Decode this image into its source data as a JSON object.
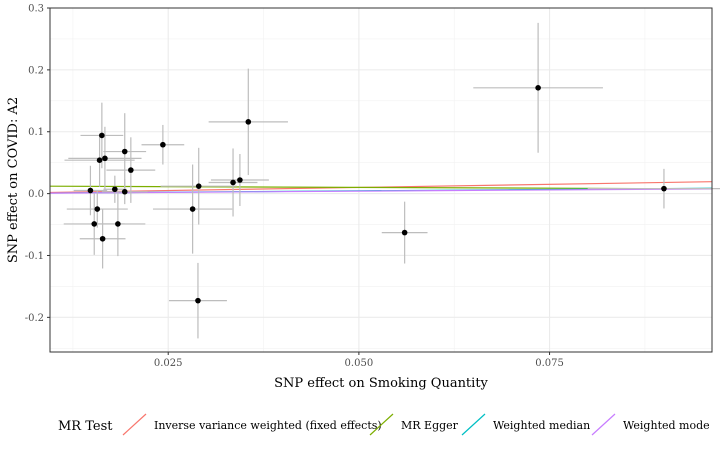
{
  "chart_data": {
    "type": "scatter",
    "xlabel": "SNP effect on Smoking Quantity",
    "ylabel": "SNP effect on COVID: A2",
    "xlim": [
      0.0095,
      0.0963
    ],
    "ylim": [
      -0.256,
      0.3
    ],
    "xticks": [
      0.025,
      0.05,
      0.075
    ],
    "xtick_labels": [
      "0.025",
      "0.050",
      "0.075"
    ],
    "yticks": [
      -0.2,
      -0.1,
      0.0,
      0.1,
      0.2,
      0.3
    ],
    "ytick_labels": [
      "-0.2",
      "-0.1",
      "0.0",
      "0.1",
      "0.2",
      "0.3"
    ],
    "grid": true,
    "points": [
      {
        "x": 0.0735,
        "y": 0.171,
        "xerr": 0.0085,
        "yerr": 0.105
      },
      {
        "x": 0.0355,
        "y": 0.116,
        "xerr": 0.0052,
        "yerr": 0.086
      },
      {
        "x": 0.0163,
        "y": 0.094,
        "xerr": 0.0028,
        "yerr": 0.053
      },
      {
        "x": 0.0243,
        "y": 0.079,
        "xerr": 0.0028,
        "yerr": 0.032
      },
      {
        "x": 0.0193,
        "y": 0.068,
        "xerr": 0.0028,
        "yerr": 0.062
      },
      {
        "x": 0.0167,
        "y": 0.057,
        "xerr": 0.0048,
        "yerr": 0.051
      },
      {
        "x": 0.016,
        "y": 0.054,
        "xerr": 0.0046,
        "yerr": 0.043
      },
      {
        "x": 0.0201,
        "y": 0.038,
        "xerr": 0.0032,
        "yerr": 0.053
      },
      {
        "x": 0.0344,
        "y": 0.022,
        "xerr": 0.0038,
        "yerr": 0.042
      },
      {
        "x": 0.0335,
        "y": 0.018,
        "xerr": 0.0032,
        "yerr": 0.055
      },
      {
        "x": 0.029,
        "y": 0.012,
        "xerr": 0.005,
        "yerr": 0.062
      },
      {
        "x": 0.018,
        "y": 0.007,
        "xerr": 0.0015,
        "yerr": 0.022
      },
      {
        "x": 0.0193,
        "y": 0.003,
        "xerr": 0.003,
        "yerr": 0.02
      },
      {
        "x": 0.0148,
        "y": 0.005,
        "xerr": 0.0022,
        "yerr": 0.04
      },
      {
        "x": 0.09,
        "y": 0.008,
        "xerr": 0.01,
        "yerr": 0.032
      },
      {
        "x": 0.0282,
        "y": -0.025,
        "xerr": 0.0052,
        "yerr": 0.072
      },
      {
        "x": 0.0157,
        "y": -0.025,
        "xerr": 0.004,
        "yerr": 0.03
      },
      {
        "x": 0.0153,
        "y": -0.049,
        "xerr": 0.004,
        "yerr": 0.05
      },
      {
        "x": 0.0184,
        "y": -0.049,
        "xerr": 0.0036,
        "yerr": 0.052
      },
      {
        "x": 0.0164,
        "y": -0.073,
        "xerr": 0.003,
        "yerr": 0.048
      },
      {
        "x": 0.056,
        "y": -0.063,
        "xerr": 0.003,
        "yerr": 0.05
      },
      {
        "x": 0.0289,
        "y": -0.173,
        "xerr": 0.0038,
        "yerr": 0.061
      }
    ],
    "lines": [
      {
        "name": "Inverse variance weighted (fixed effects)",
        "color": "#F8766D",
        "intercept": 0.0,
        "slope": 0.2
      },
      {
        "name": "MR Egger",
        "color": "#7CAE00",
        "intercept": 0.0125,
        "slope": -0.05
      },
      {
        "name": "Weighted median",
        "color": "#00BFC4",
        "intercept": 0.0,
        "slope": 0.09
      },
      {
        "name": "Weighted mode",
        "color": "#C77CFF",
        "intercept": 0.0,
        "slope": 0.08
      }
    ],
    "legend": {
      "title": "MR Test",
      "position": "bottom"
    }
  }
}
